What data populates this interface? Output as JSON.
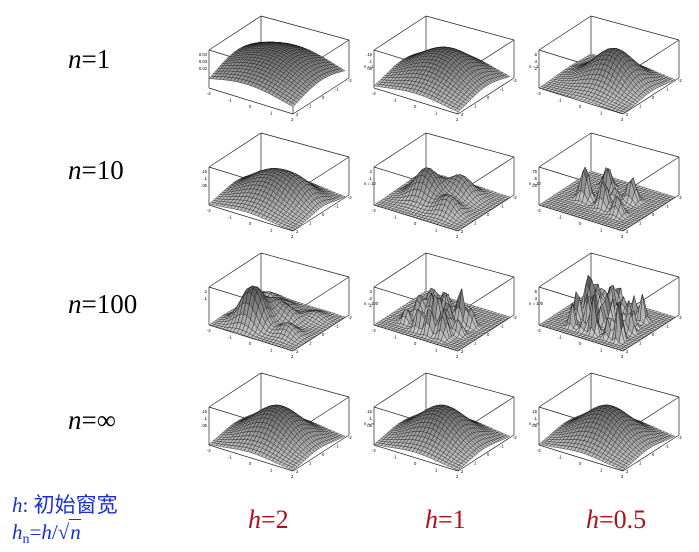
{
  "rows": [
    {
      "label_var": "n",
      "label_val": "=1",
      "axis_tag": "n = 1",
      "ticks_a": [
        "0.04",
        "0.03",
        "0.02"
      ],
      "ticks_b": [
        ".15",
        ".1",
        ".05"
      ],
      "ticks_c": [
        ".6",
        ".4",
        ".2"
      ]
    },
    {
      "label_var": "n",
      "label_val": "=10",
      "axis_tag": "n = 10",
      "ticks_a": [
        ".15",
        ".1",
        ".05"
      ],
      "ticks_b": [
        ".2",
        ".1"
      ],
      "ticks_c": [
        ".75",
        ".5",
        ".25"
      ]
    },
    {
      "label_var": "n",
      "label_val": "=100",
      "axis_tag": "n = 100",
      "ticks_a": [
        ".2",
        ".1"
      ],
      "ticks_b": [
        ".3",
        ".2",
        ".1"
      ],
      "ticks_c": [
        ".5",
        ".3"
      ]
    },
    {
      "label_var": "n",
      "label_val": "=∞",
      "axis_tag": "n = ∞",
      "ticks_a": [
        ".15",
        ".1",
        ".05"
      ],
      "ticks_b": [
        ".15",
        ".1",
        ".05"
      ],
      "ticks_c": [
        ".15",
        ".1",
        ".05"
      ]
    }
  ],
  "columns": [
    {
      "label_var": "h",
      "label_val": "=2"
    },
    {
      "label_var": "h",
      "label_val": "=1"
    },
    {
      "label_var": "h",
      "label_val": "=0.5"
    }
  ],
  "axis_ticks": {
    "x": [
      "-2",
      "-1",
      "0",
      "1",
      "2"
    ],
    "y": [
      "2",
      "1",
      "0",
      "-1",
      "-2"
    ]
  },
  "legend": {
    "line1_var": "h",
    "line1_text": ": 初始窗宽",
    "line2_var": "h",
    "line2_sub": "n",
    "line2_eq": "=",
    "line2_rhs_var": "h",
    "line2_slash": "/",
    "line2_root": "√",
    "line2_root_var": "n"
  },
  "colors": {
    "legend": "#1a2fd8",
    "column_labels": "#b0101a",
    "surface": "#555555",
    "mesh": "#111111"
  }
}
